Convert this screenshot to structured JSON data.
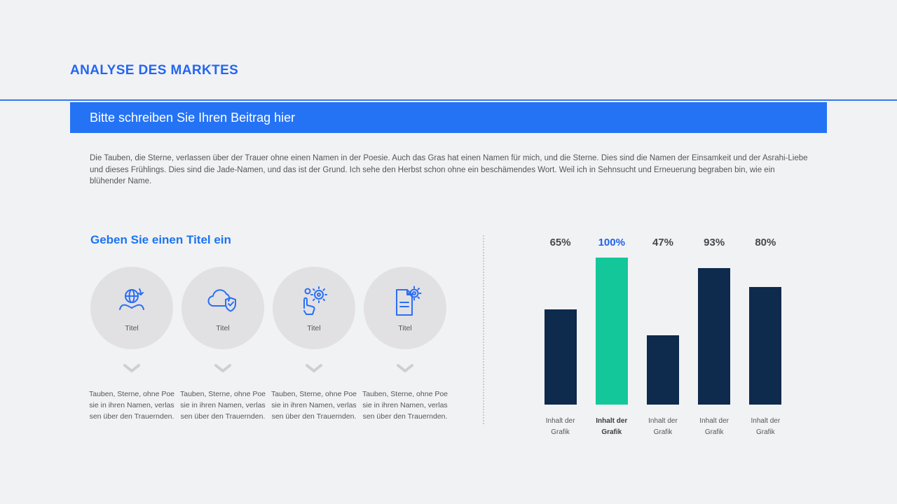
{
  "header": {
    "title": "ANALYSE DES MARKTES",
    "banner_text": "Bitte schreiben Sie Ihren Beitrag hier",
    "paragraph": "Die Tauben, die Sterne, verlassen über der Trauer ohne einen Namen in der Poesie. Auch das Gras hat einen Namen für mich, und die Sterne. Dies sind die Namen der Einsamkeit und der Asrahi-Liebe und dieses Frühlings. Dies sind die Jade-Namen, und das ist der Grund. Ich sehe den Herbst schon ohne ein beschämendes Wort. Weil ich in Sehnsucht und Erneuerung begraben bin, wie ein blühender Name."
  },
  "left_section": {
    "heading": "Geben Sie einen Titel ein",
    "items": [
      {
        "icon": "hands-globe-icon",
        "label": "Titel",
        "caption": "Tauben, Sterne, ohne Poesie in ihren Namen, verlassen über den Trauernden."
      },
      {
        "icon": "cloud-shield-icon",
        "label": "Titel",
        "caption": "Tauben, Sterne, ohne Poesie in ihren Namen, verlassen über den Trauernden."
      },
      {
        "icon": "hand-gears-icon",
        "label": "Titel",
        "caption": "Tauben, Sterne, ohne Poesie in ihren Namen, verlassen über den Trauernden."
      },
      {
        "icon": "document-gear-icon",
        "label": "Titel",
        "caption": "Tauben, Sterne, ohne Poesie in ihren Namen, verlassen über den Trauernden."
      }
    ]
  },
  "chart_data": {
    "type": "bar",
    "title": "",
    "categories": [
      "Inhalt der Grafik",
      "Inhalt der Grafik",
      "Inhalt der Grafik",
      "Inhalt der Grafik",
      "Inhalt der Grafik"
    ],
    "values": [
      65,
      100,
      47,
      93,
      80
    ],
    "value_labels": [
      "65%",
      "100%",
      "47%",
      "93%",
      "80%"
    ],
    "highlight_index": 1,
    "ylim": [
      0,
      100
    ],
    "grid": false,
    "legend": "none",
    "bar_color": "#0e2a4c",
    "highlight_color": "#14c79a",
    "label_color": "#47484c",
    "highlight_label_color": "#1e63ee"
  },
  "colors": {
    "background": "#f1f2f4",
    "accent_blue": "#2466f1",
    "banner_blue": "#2573f5",
    "text_gray": "#55565a",
    "circle_gray": "#e1e1e3"
  }
}
